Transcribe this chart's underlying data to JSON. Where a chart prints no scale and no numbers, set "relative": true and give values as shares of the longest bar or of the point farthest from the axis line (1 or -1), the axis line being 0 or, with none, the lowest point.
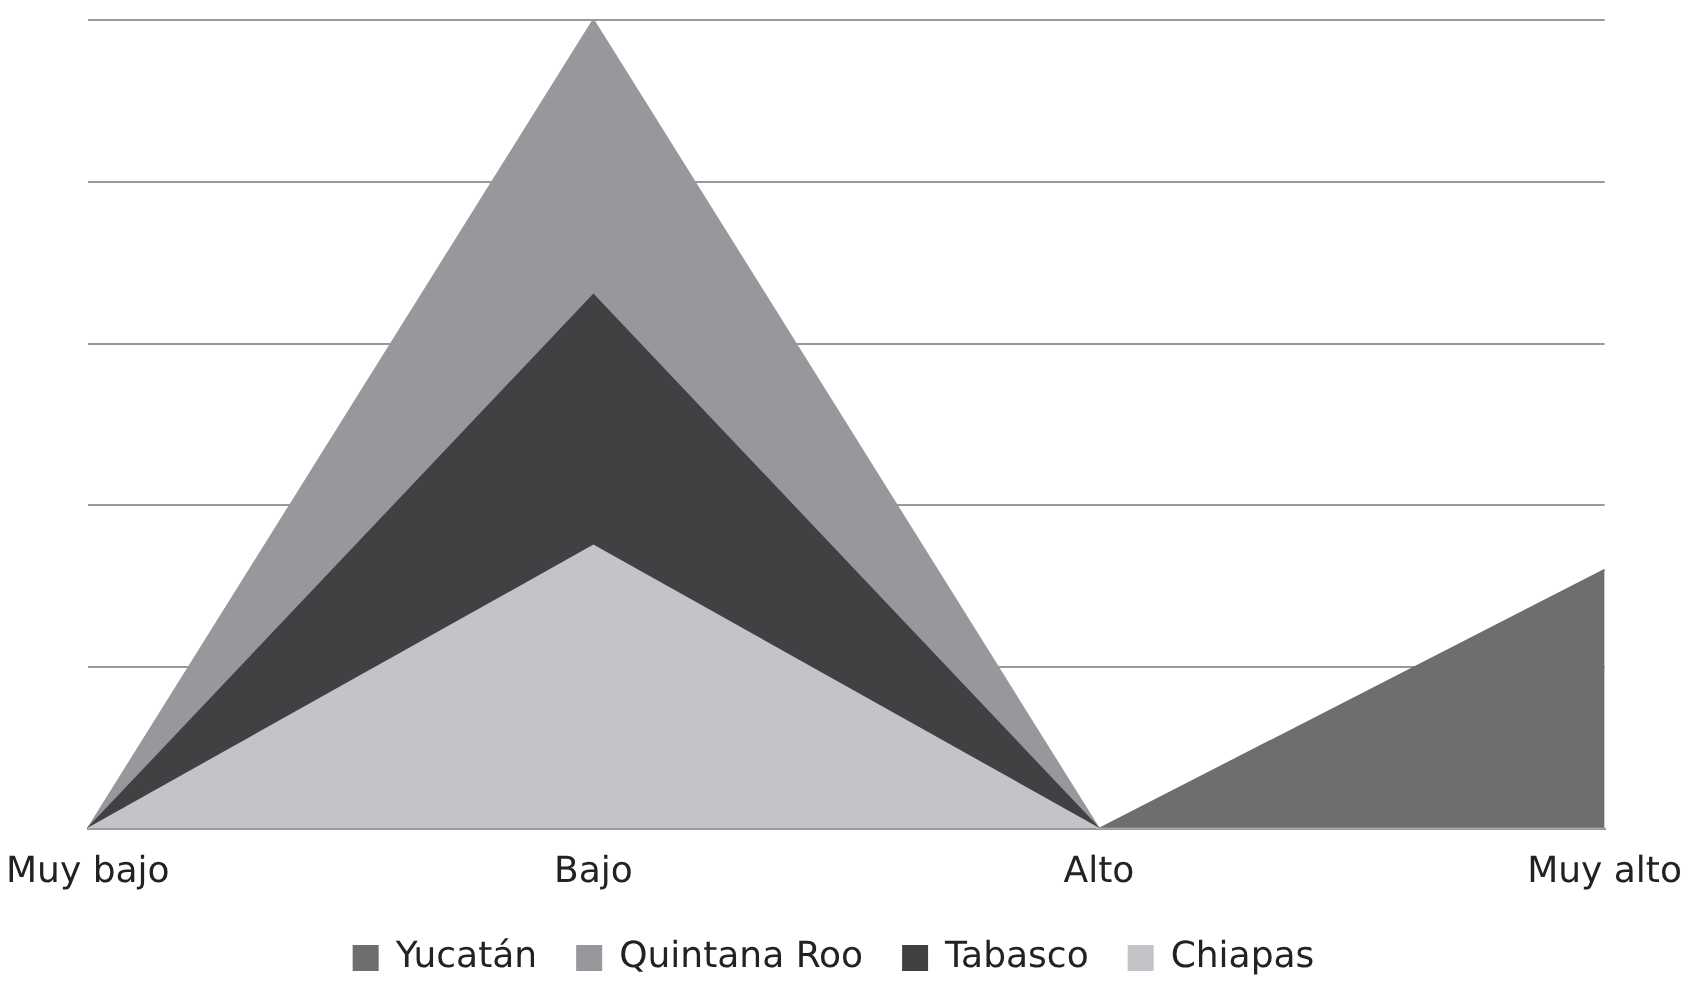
{
  "chart_data": {
    "type": "area",
    "relative": true,
    "categories": [
      "Muy bajo",
      "Bajo",
      "Alto",
      "Muy alto"
    ],
    "series": [
      {
        "name": "Yucatán",
        "color": "#6e6e70",
        "values": [
          0,
          0,
          0,
          0.32
        ]
      },
      {
        "name": "Quintana Roo",
        "color": "#98989c",
        "values": [
          0,
          1,
          0,
          0
        ]
      },
      {
        "name": "Tabasco",
        "color": "#414042",
        "values": [
          0,
          0.66,
          0,
          0
        ]
      },
      {
        "name": "Chiapas",
        "color": "#c4c4c8",
        "values": [
          0,
          0.35,
          0,
          0
        ]
      }
    ],
    "grid": "y",
    "legend": "bottom"
  }
}
